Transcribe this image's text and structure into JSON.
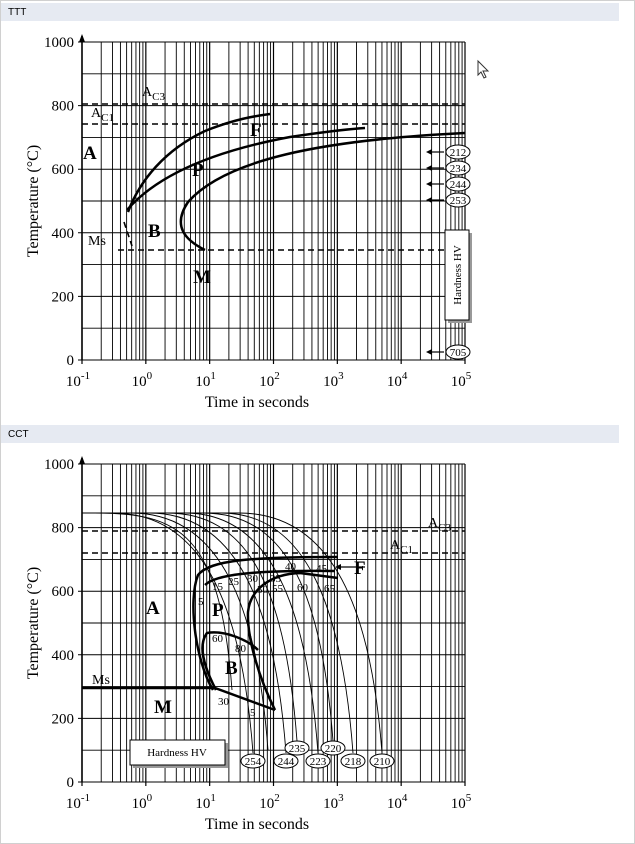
{
  "panels": [
    {
      "header": "TTT",
      "y_label": "Temperature (°C)",
      "x_label": "Time in seconds",
      "yticks": [
        0,
        200,
        400,
        600,
        800,
        1000
      ],
      "x_base": "10",
      "x_exponents": [
        -1,
        0,
        1,
        2,
        3,
        4,
        5
      ],
      "regions": [
        "A",
        "F",
        "P",
        "B",
        "M"
      ],
      "ms": "Ms",
      "ac3": {
        "main": "A",
        "sub": "C3"
      },
      "ac1": {
        "main": "A",
        "sub": "C1"
      },
      "hardness_title": "Hardness HV",
      "hardness": [
        212,
        234,
        244,
        253,
        705
      ]
    },
    {
      "header": "CCT",
      "y_label": "Temperature (°C)",
      "x_label": "Time in seconds",
      "yticks": [
        0,
        200,
        400,
        600,
        800,
        1000
      ],
      "x_base": "10",
      "x_exponents": [
        -1,
        0,
        1,
        2,
        3,
        4,
        5
      ],
      "regions": [
        "A",
        "F",
        "P",
        "B",
        "M"
      ],
      "ms": "Ms",
      "ac3": {
        "main": "A",
        "sub": "C3"
      },
      "ac1": {
        "main": "A",
        "sub": "C1"
      },
      "hardness_title": "Hardness HV",
      "hardness": [
        254,
        244,
        235,
        223,
        220,
        218,
        210
      ],
      "cooling_labels": [
        5,
        15,
        25,
        30,
        40,
        45,
        35,
        50,
        55,
        60,
        65,
        60,
        80,
        30,
        5
      ]
    }
  ]
}
